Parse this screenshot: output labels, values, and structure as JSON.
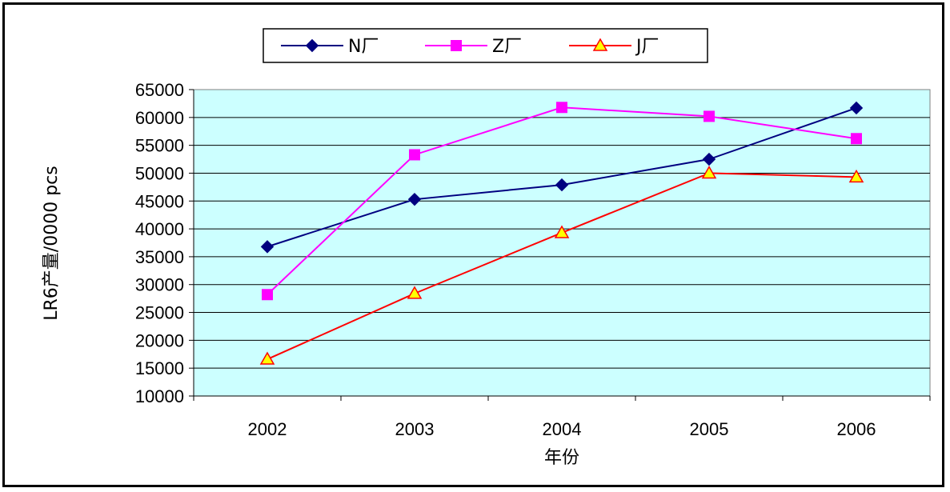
{
  "chart_data": {
    "type": "line",
    "title": "",
    "xlabel": "年份",
    "ylabel": "LR6产量/0000 pcs",
    "categories": [
      "2002",
      "2003",
      "2004",
      "2005",
      "2006"
    ],
    "ylim": [
      10000,
      65000
    ],
    "yticks": [
      10000,
      15000,
      20000,
      25000,
      30000,
      35000,
      40000,
      45000,
      50000,
      55000,
      60000,
      65000
    ],
    "grid": true,
    "plot_background": "#ccffff",
    "legend_position": "top-center",
    "series": [
      {
        "name": "N厂",
        "values": [
          36800,
          45300,
          47900,
          52500,
          61700
        ],
        "color": "#000080",
        "marker": "diamond"
      },
      {
        "name": "Z厂",
        "values": [
          28200,
          53300,
          61800,
          60200,
          56200
        ],
        "color": "#ff00ff",
        "marker": "square"
      },
      {
        "name": "J厂",
        "values": [
          16600,
          28400,
          39300,
          50000,
          49300
        ],
        "color": "#ff0000",
        "marker": "triangle",
        "marker_fill": "#ffff00"
      }
    ]
  }
}
